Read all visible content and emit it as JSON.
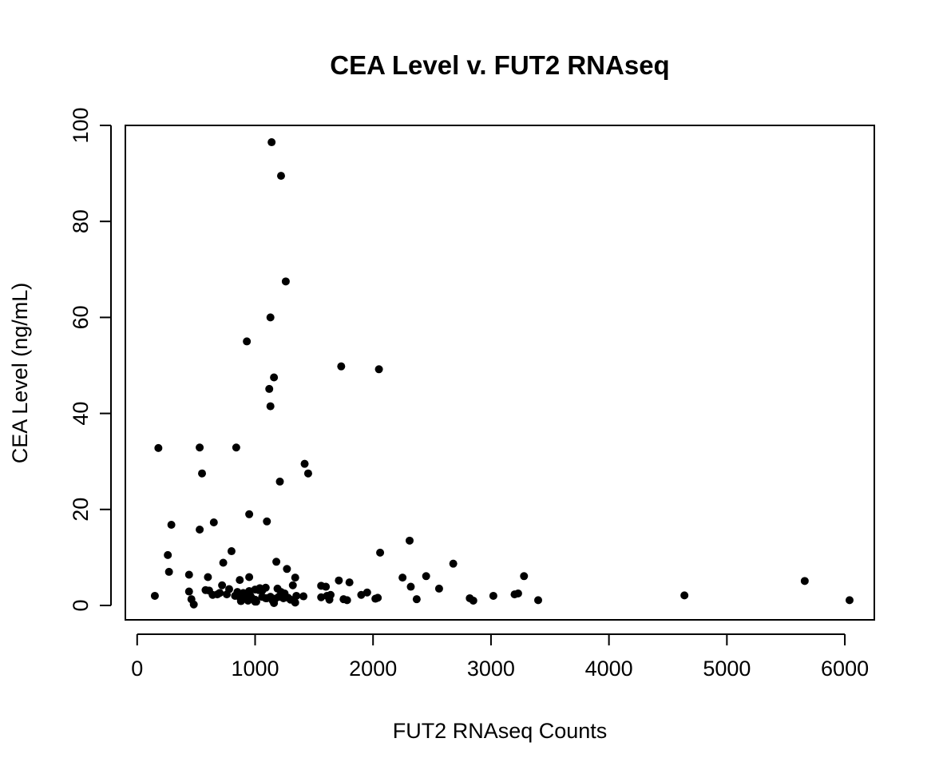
{
  "chart_data": {
    "type": "scatter",
    "title": "CEA Level v. FUT2 RNAseq",
    "xlabel": "FUT2 RNAseq Counts",
    "ylabel": "CEA Level (ng/mL)",
    "xlim": [
      -100,
      6250
    ],
    "ylim": [
      -3,
      100
    ],
    "xticks": [
      0,
      1000,
      2000,
      3000,
      4000,
      5000,
      6000
    ],
    "yticks": [
      0,
      20,
      40,
      60,
      80,
      100
    ],
    "grid": false,
    "legend": "none",
    "point_color": "#000000",
    "series": [
      {
        "x": [
          1140,
          1220,
          1260,
          1130,
          930,
          1730,
          2050,
          1120,
          1130,
          1160,
          180,
          530,
          840,
          550,
          1420,
          1450,
          1210,
          950,
          1100,
          650,
          290,
          530,
          800,
          260,
          270,
          440,
          730,
          1180,
          1270,
          2060,
          2310,
          2680,
          2450,
          3280,
          5660,
          2250,
          1710,
          1800,
          600,
          870,
          950,
          1340,
          720,
          1560,
          1600,
          1320,
          1090,
          1190,
          2320,
          1220,
          1250,
          1000,
          1060,
          780,
          850,
          900,
          950,
          1030,
          580,
          610,
          700,
          1040,
          1900,
          1950,
          2560,
          3020,
          3200,
          3230,
          4640,
          1610,
          1640,
          2820,
          2850,
          1750,
          1780,
          2020,
          2040,
          2370,
          3400,
          6040,
          150,
          440,
          460,
          480,
          1000,
          1150,
          1160,
          1170,
          1300,
          1340,
          1410,
          1350,
          960,
          920,
          870,
          830,
          760,
          680,
          640,
          1060,
          1100,
          1200,
          1240,
          1000,
          880,
          910,
          940,
          970,
          1010,
          1090,
          1130,
          1280,
          1560,
          1630
        ],
        "y": [
          96.5,
          89.5,
          67.5,
          60,
          55,
          49.8,
          49.2,
          45.1,
          41.5,
          47.5,
          32.8,
          32.9,
          32.9,
          27.5,
          29.5,
          27.5,
          25.8,
          19.0,
          17.5,
          17.3,
          16.8,
          15.8,
          11.3,
          10.5,
          7.0,
          6.4,
          8.9,
          9.1,
          7.6,
          11.0,
          13.5,
          8.7,
          6.1,
          6.1,
          5.1,
          5.8,
          5.2,
          4.8,
          5.9,
          5.3,
          5.9,
          5.8,
          4.2,
          4.1,
          3.9,
          4.2,
          3.7,
          3.5,
          3.9,
          2.8,
          2.5,
          3.3,
          3.1,
          3.4,
          2.8,
          2.6,
          3.0,
          3.2,
          3.2,
          3.1,
          2.6,
          3.6,
          2.2,
          2.7,
          3.5,
          2.0,
          2.3,
          2.5,
          2.1,
          2.0,
          2.2,
          1.5,
          1.0,
          1.3,
          1.1,
          1.4,
          1.6,
          1.3,
          1.1,
          1.1,
          2.0,
          2.9,
          1.3,
          0.2,
          0.8,
          1.0,
          0.5,
          1.4,
          1.2,
          0.6,
          1.9,
          2.0,
          2.0,
          1.4,
          1.7,
          2.0,
          2.3,
          2.3,
          2.2,
          1.8,
          1.5,
          1.8,
          1.5,
          1.2,
          0.9,
          1.5,
          1.0,
          1.6,
          0.8,
          1.5,
          1.8,
          1.6,
          1.7,
          1.2
        ]
      }
    ]
  }
}
